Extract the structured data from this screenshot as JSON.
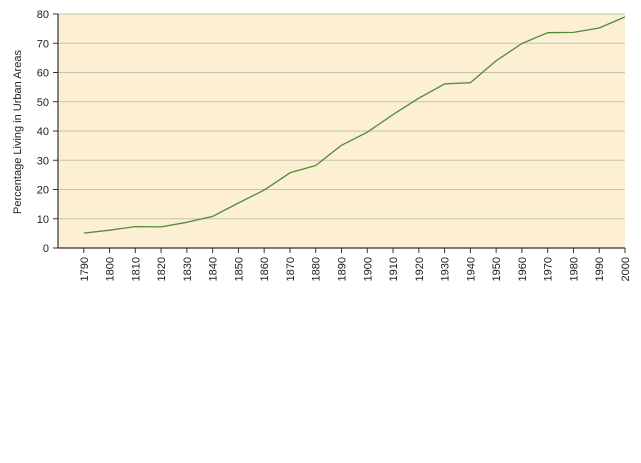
{
  "chart_data": {
    "type": "line",
    "title": "",
    "xlabel": "",
    "ylabel": "Percentage Living in Urban Areas",
    "x": [
      1790,
      1800,
      1810,
      1820,
      1830,
      1840,
      1850,
      1860,
      1870,
      1880,
      1890,
      1900,
      1910,
      1920,
      1930,
      1940,
      1950,
      1960,
      1970,
      1980,
      1990,
      2000
    ],
    "x_tick_labels": [
      "1790",
      "1800",
      "1810",
      "1820",
      "1830",
      "1840",
      "1850",
      "1860",
      "1870",
      "1880",
      "1890",
      "1900",
      "1910",
      "1920",
      "1930",
      "1940",
      "1950",
      "1960",
      "1970",
      "1980",
      "1990",
      "2000"
    ],
    "series": [
      {
        "values": [
          5.1,
          6.1,
          7.3,
          7.2,
          8.8,
          10.8,
          15.4,
          19.8,
          25.7,
          28.2,
          35.1,
          39.6,
          45.6,
          51.2,
          56.1,
          56.5,
          64.0,
          69.9,
          73.6,
          73.7,
          75.2,
          79.0
        ]
      }
    ],
    "ylim": [
      0,
      80
    ],
    "y_ticks": [
      0,
      10,
      20,
      30,
      40,
      50,
      60,
      70,
      80
    ],
    "xlim": [
      1780,
      2000
    ],
    "grid": true,
    "colors": {
      "plot_background": "#fdefd2",
      "line": "#4f8a3a",
      "grid": "#c8c1b2",
      "axis": "#333333"
    }
  }
}
